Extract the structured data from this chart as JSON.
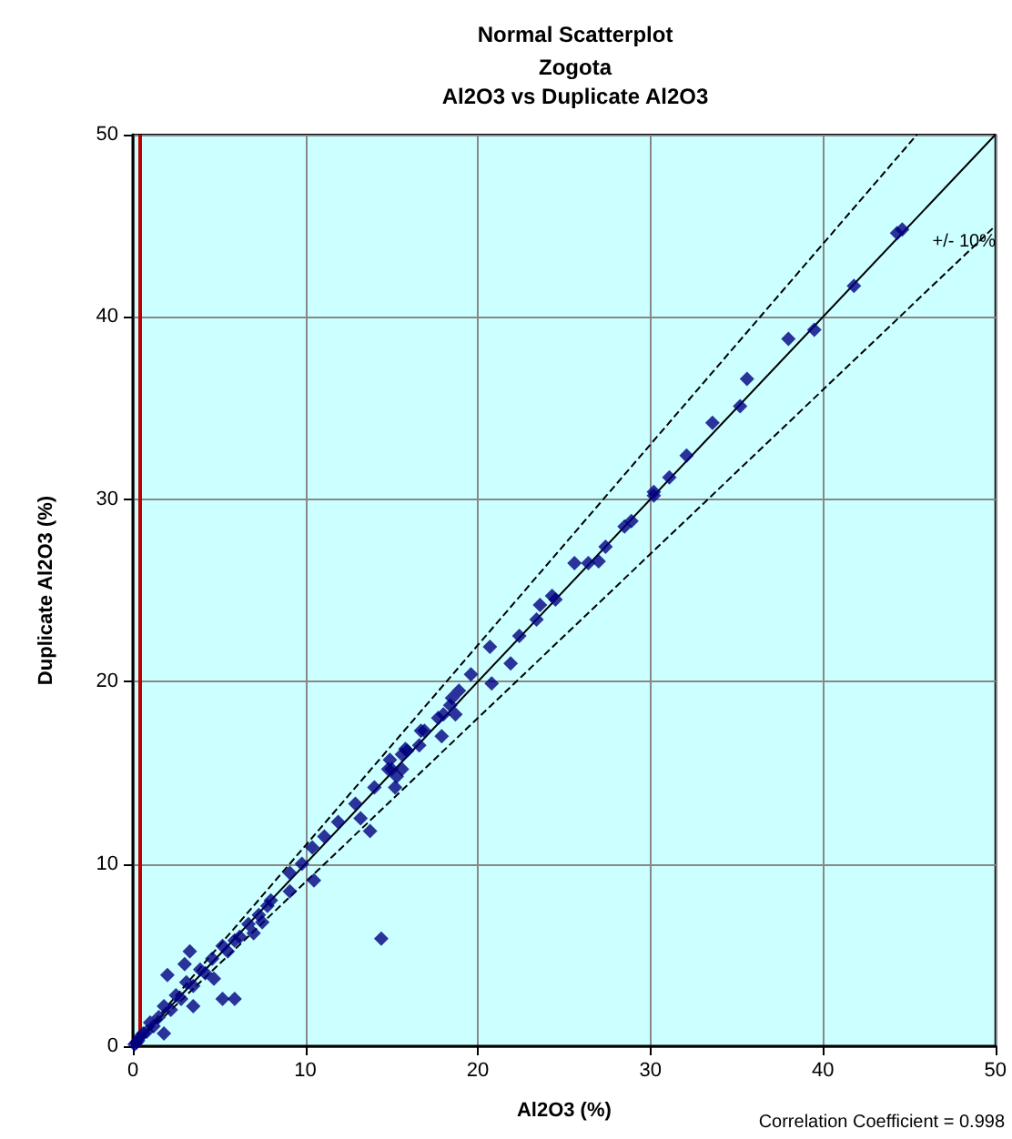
{
  "chart_data": {
    "type": "scatter",
    "title": "Normal Scatterplot",
    "subtitle": "Zogota\nAl2O3 vs Duplicate Al2O3",
    "xlabel": "Al2O3 (%)",
    "ylabel": "Duplicate Al2O3 (%)",
    "xlim": [
      0,
      50
    ],
    "ylim": [
      0,
      50
    ],
    "xticks": [
      0,
      10,
      20,
      30,
      40,
      50
    ],
    "yticks": [
      0,
      10,
      20,
      30,
      40,
      50
    ],
    "grid": true,
    "series": [
      {
        "marker": "diamond",
        "color": "#000080",
        "x": [
          0.1,
          0.2,
          0.3,
          0.4,
          0.6,
          0.8,
          1.0,
          1.2,
          1.5,
          1.8,
          2.2,
          2.5,
          2.8,
          3.1,
          3.5,
          3.9,
          4.2,
          4.6,
          5.2,
          5.5,
          5.9,
          6.2,
          6.7,
          7.0,
          7.3,
          7.5,
          7.8,
          8.0,
          9.1,
          9.1,
          9.8,
          10.4,
          10.5,
          11.1,
          11.9,
          12.9,
          13.2,
          13.75,
          14.0,
          14.4,
          15.0,
          15.2,
          15.8,
          16.7,
          3.3,
          2.0,
          3.0,
          5.2,
          5.9,
          4.7,
          3.5,
          1.8,
          14.8,
          14.9,
          15.3,
          15.6,
          15.6,
          15.9,
          16.6,
          16.9,
          17.7,
          17.9,
          18.0,
          18.4,
          18.5,
          18.7,
          18.9,
          19.6,
          20.7,
          20.8,
          21.9,
          22.4,
          23.4,
          23.6,
          24.3,
          24.5,
          25.6,
          26.4,
          27.0,
          27.4,
          28.5,
          28.9,
          30.2,
          30.2,
          31.1,
          32.1,
          33.6,
          35.2,
          35.6,
          38.0,
          39.5,
          41.8,
          44.3,
          44.6
        ],
        "values": [
          0.1,
          0.2,
          0.3,
          0.5,
          0.7,
          0.8,
          1.3,
          1.1,
          1.6,
          2.2,
          2.0,
          2.8,
          2.6,
          3.5,
          3.3,
          4.2,
          4.0,
          4.8,
          5.5,
          5.2,
          5.8,
          6.0,
          6.7,
          6.2,
          7.2,
          6.8,
          7.7,
          8.0,
          9.5,
          8.5,
          10.0,
          10.9,
          9.1,
          11.5,
          12.3,
          13.3,
          12.5,
          11.8,
          14.2,
          5.9,
          15.2,
          14.2,
          16.3,
          17.3,
          5.2,
          3.9,
          4.5,
          2.6,
          2.6,
          3.7,
          2.2,
          0.7,
          15.2,
          15.7,
          14.8,
          16.0,
          15.2,
          16.2,
          16.5,
          17.3,
          18.0,
          17.0,
          18.2,
          18.7,
          19.1,
          18.2,
          19.5,
          20.4,
          21.9,
          19.9,
          21.0,
          22.5,
          23.4,
          24.2,
          24.7,
          24.5,
          26.5,
          26.5,
          26.6,
          27.4,
          28.5,
          28.8,
          30.4,
          30.2,
          31.2,
          32.4,
          34.2,
          35.1,
          36.6,
          38.8,
          39.3,
          41.7,
          44.6,
          44.8
        ]
      },
      {
        "type": "line",
        "marker": "none",
        "color": "#000000",
        "line_style": "solid",
        "x": [
          0,
          50
        ],
        "values": [
          0,
          50
        ]
      },
      {
        "type": "line",
        "marker": "none",
        "color": "#000000",
        "line_style": "dashed",
        "x": [
          0,
          45.45
        ],
        "values": [
          0,
          50
        ]
      },
      {
        "type": "line",
        "marker": "none",
        "color": "#000000",
        "line_style": "dashed",
        "x": [
          0,
          50
        ],
        "values": [
          0,
          45
        ]
      }
    ],
    "ref_lines": [
      {
        "axis": "x",
        "value": 0.4,
        "color": "#c00000"
      }
    ],
    "annotations": [
      "+/- 10%",
      "Correlation Coefficient = 0.998"
    ]
  }
}
